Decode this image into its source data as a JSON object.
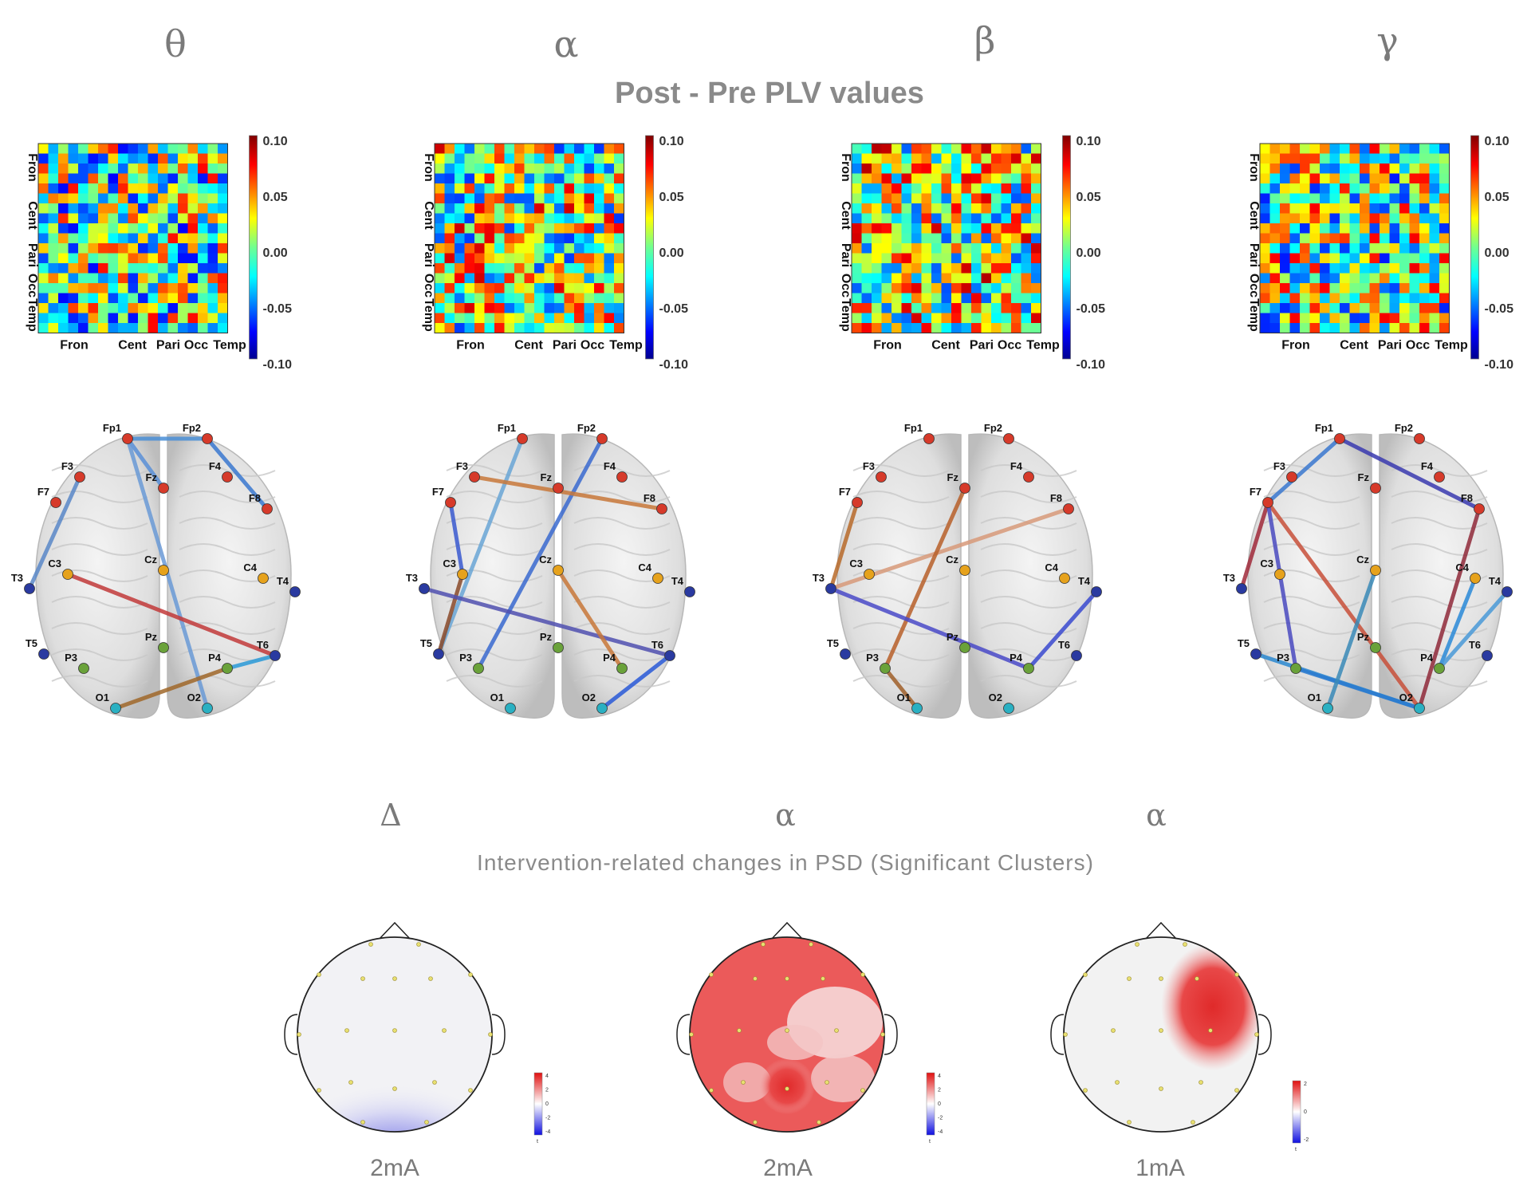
{
  "header": {
    "bands": [
      "θ",
      "α",
      "β",
      "γ"
    ],
    "title": "Post - Pre PLV values"
  },
  "matrix": {
    "x_tick_labels": [
      "Fron",
      "Cent",
      "Pari",
      "Occ",
      "Temp"
    ],
    "y_tick_labels": [
      "Fron",
      "Cent",
      "Pari",
      "Occ",
      "Temp"
    ],
    "colorbar_ticks": [
      "0.10",
      "0.05",
      "0.00",
      "-0.05",
      "-0.10"
    ]
  },
  "brain": {
    "electrodes": [
      {
        "name": "Fp1",
        "group": "frontal"
      },
      {
        "name": "Fp2",
        "group": "frontal"
      },
      {
        "name": "F7",
        "group": "frontal"
      },
      {
        "name": "F3",
        "group": "frontal"
      },
      {
        "name": "Fz",
        "group": "frontal"
      },
      {
        "name": "F4",
        "group": "frontal"
      },
      {
        "name": "F8",
        "group": "frontal"
      },
      {
        "name": "T3",
        "group": "temporal"
      },
      {
        "name": "C3",
        "group": "central"
      },
      {
        "name": "Cz",
        "group": "central"
      },
      {
        "name": "C4",
        "group": "central"
      },
      {
        "name": "T4",
        "group": "temporal"
      },
      {
        "name": "T5",
        "group": "temporal"
      },
      {
        "name": "P3",
        "group": "parietal"
      },
      {
        "name": "Pz",
        "group": "parietal"
      },
      {
        "name": "P4",
        "group": "parietal"
      },
      {
        "name": "T6",
        "group": "temporal"
      },
      {
        "name": "O1",
        "group": "occipital"
      },
      {
        "name": "O2",
        "group": "occipital"
      }
    ],
    "group_colors": {
      "frontal": "#d63a2a",
      "central": "#e6a21c",
      "parietal": "#6aa23a",
      "occipital": "#2ab0c2",
      "temporal": "#2a3aa0"
    },
    "connections": [
      [
        [
          "Fp1",
          "Fp2",
          "#4a8fd6"
        ],
        [
          "Fp2",
          "F8",
          "#3a78d0"
        ],
        [
          "Fp1",
          "Fz",
          "#5a90d8"
        ],
        [
          "F3",
          "T3",
          "#5a88c8"
        ],
        [
          "Fp1",
          "O2",
          "#6a9ad6"
        ],
        [
          "C3",
          "T6",
          "#c23a3a"
        ],
        [
          "P4",
          "T6",
          "#2a9ad8"
        ],
        [
          "O1",
          "P4",
          "#a0682a"
        ]
      ],
      [
        [
          "Fp1",
          "T5",
          "#6aa6d6"
        ],
        [
          "Fp2",
          "P3",
          "#3a6ad0"
        ],
        [
          "F3",
          "F8",
          "#c8783a"
        ],
        [
          "F7",
          "C3",
          "#3a5ad0"
        ],
        [
          "C3",
          "T5",
          "#8a4a2a"
        ],
        [
          "T3",
          "T6",
          "#5050b0"
        ],
        [
          "Cz",
          "P4",
          "#c8783a"
        ],
        [
          "O2",
          "T6",
          "#2a5ad8"
        ]
      ],
      [
        [
          "F7",
          "T3",
          "#b86a2a"
        ],
        [
          "T3",
          "F8",
          "#d89a7a"
        ],
        [
          "Fz",
          "P3",
          "#b8602a"
        ],
        [
          "T3",
          "P4",
          "#4a4ac8"
        ],
        [
          "P3",
          "O1",
          "#a0602a"
        ],
        [
          "P4",
          "T4",
          "#3a4ad0"
        ]
      ],
      [
        [
          "Fp1",
          "F7",
          "#3a78d0"
        ],
        [
          "Fp1",
          "F8",
          "#3a3ab0"
        ],
        [
          "F7",
          "T3",
          "#a02a3a"
        ],
        [
          "F7",
          "O2",
          "#c8503a"
        ],
        [
          "F7",
          "P3",
          "#4a4ac0"
        ],
        [
          "T5",
          "O2",
          "#2a88d0"
        ],
        [
          "P3",
          "O2",
          "#2a7ad0"
        ],
        [
          "O1",
          "Cz",
          "#3a8ab8"
        ],
        [
          "O2",
          "F8",
          "#902a3a"
        ],
        [
          "P4",
          "C4",
          "#2a8ad8"
        ],
        [
          "P4",
          "T4",
          "#4a9ad8"
        ]
      ]
    ]
  },
  "psd": {
    "bands": [
      "Δ",
      "α",
      "α"
    ],
    "title": "Intervention-related changes in PSD (Significant Clusters)",
    "currents": [
      "2mA",
      "2mA",
      "1mA"
    ],
    "colorbar_ticks": [
      [
        "4",
        "2",
        "0",
        "-2",
        "-4"
      ],
      [
        "4",
        "2",
        "0",
        "-2",
        "-4"
      ],
      [
        "2",
        "0",
        "-2"
      ]
    ],
    "colorbar_min_label": "t"
  }
}
